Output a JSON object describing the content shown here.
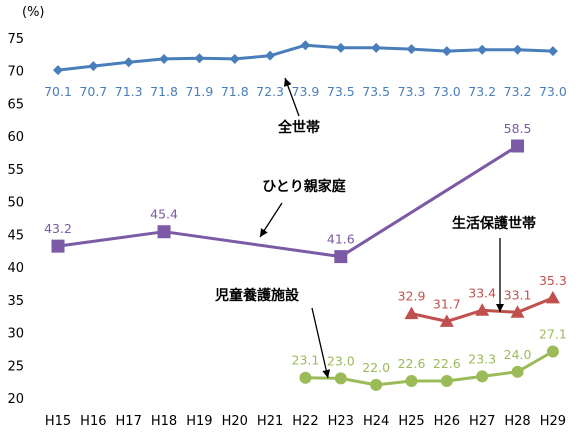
{
  "chart_data": {
    "type": "line",
    "unit_label": "(%)",
    "title": "",
    "xlabel": "",
    "ylabel": "",
    "categories": [
      "H15",
      "H16",
      "H17",
      "H18",
      "H19",
      "H20",
      "H21",
      "H22",
      "H23",
      "H24",
      "H25",
      "H26",
      "H27",
      "H28",
      "H29"
    ],
    "y_ticks": [
      20,
      25,
      30,
      35,
      40,
      45,
      50,
      55,
      60,
      65,
      70,
      75
    ],
    "ylim": [
      20,
      75
    ],
    "grid": false,
    "legend": "none",
    "series": [
      {
        "name": "全世帯",
        "color": "#4a7ebb",
        "marker": "diamond",
        "values": [
          70.1,
          70.7,
          71.3,
          71.8,
          71.9,
          71.8,
          72.3,
          73.9,
          73.5,
          73.5,
          73.3,
          73.0,
          73.2,
          73.2,
          73.0
        ],
        "labels": [
          "70.1",
          "70.7",
          "71.3",
          "71.8",
          "71.9",
          "71.8",
          "72.3",
          "73.9",
          "73.5",
          "73.5",
          "73.3",
          "73.0",
          "73.2",
          "73.2",
          "73.0"
        ]
      },
      {
        "name": "ひとり親家庭",
        "color": "#7b5aa6",
        "marker": "square",
        "values": [
          43.2,
          null,
          null,
          45.4,
          null,
          null,
          null,
          null,
          41.6,
          null,
          null,
          null,
          null,
          58.5,
          null
        ],
        "labels": [
          "43.2",
          null,
          null,
          "45.4",
          null,
          null,
          null,
          null,
          "41.6",
          null,
          null,
          null,
          null,
          "58.5",
          null
        ]
      },
      {
        "name": "生活保護世帯",
        "color": "#c0504d",
        "marker": "triangle",
        "values": [
          null,
          null,
          null,
          null,
          null,
          null,
          null,
          null,
          null,
          null,
          32.9,
          31.7,
          33.4,
          33.1,
          35.3
        ],
        "labels": [
          null,
          null,
          null,
          null,
          null,
          null,
          null,
          null,
          null,
          null,
          "32.9",
          "31.7",
          "33.4",
          "33.1",
          "35.3"
        ]
      },
      {
        "name": "児童養護施設",
        "color": "#9bbb59",
        "marker": "circle",
        "values": [
          null,
          null,
          null,
          null,
          null,
          null,
          null,
          23.1,
          23.0,
          22.0,
          22.6,
          22.6,
          23.3,
          24.0,
          27.1
        ],
        "labels": [
          null,
          null,
          null,
          null,
          null,
          null,
          null,
          "23.1",
          "23.0",
          "22.0",
          "22.6",
          "22.6",
          "23.3",
          "24.0",
          "27.1"
        ]
      }
    ],
    "annotations": [
      {
        "text": "全世帯"
      },
      {
        "text": "ひとり親家庭"
      },
      {
        "text": "生活保護世帯"
      },
      {
        "text": "児童養護施設"
      }
    ]
  }
}
